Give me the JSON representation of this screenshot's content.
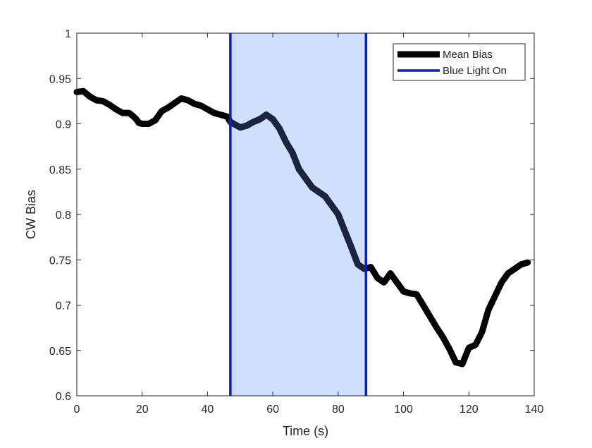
{
  "chart_data": {
    "type": "line",
    "title": "",
    "xlabel": "Time (s)",
    "ylabel": "CW Bias",
    "xlim": [
      0,
      140
    ],
    "ylim": [
      0.6,
      1
    ],
    "xticks": [
      0,
      20,
      40,
      60,
      80,
      100,
      120,
      140
    ],
    "xtick_labels": [
      "0",
      "20",
      "40",
      "60",
      "80",
      "100",
      "120",
      "140"
    ],
    "yticks": [
      0.6,
      0.65,
      0.7,
      0.75,
      0.8,
      0.85,
      0.9,
      0.95,
      1
    ],
    "ytick_labels": [
      "0.6",
      "0.65",
      "0.7",
      "0.75",
      "0.8",
      "0.85",
      "0.9",
      "0.95",
      "1"
    ],
    "grid": false,
    "legend_position": "top-right",
    "shaded_region": {
      "x_start": 47,
      "x_end": 88.5,
      "color": "#cfe0fb"
    },
    "series": [
      {
        "name": "Mean Bias",
        "color": "#000000",
        "x": [
          0,
          2,
          4,
          6,
          8,
          10,
          12,
          14,
          16,
          18,
          19,
          20,
          22,
          24,
          26,
          28,
          30,
          32,
          34,
          36,
          38,
          40,
          42,
          44,
          46,
          47,
          48,
          50,
          52,
          54,
          56,
          58,
          60,
          62,
          64,
          66,
          68,
          70,
          72,
          74,
          76,
          78,
          80,
          82,
          84,
          86,
          88,
          90,
          92,
          94,
          96,
          98,
          100,
          102,
          104,
          106,
          108,
          110,
          112,
          114,
          116,
          118,
          120,
          122,
          124,
          126,
          128,
          130,
          132,
          134,
          136,
          138
        ],
        "y": [
          0.935,
          0.936,
          0.93,
          0.926,
          0.925,
          0.921,
          0.916,
          0.912,
          0.912,
          0.906,
          0.901,
          0.9,
          0.9,
          0.904,
          0.914,
          0.918,
          0.923,
          0.928,
          0.926,
          0.922,
          0.92,
          0.916,
          0.912,
          0.91,
          0.908,
          0.902,
          0.9,
          0.896,
          0.898,
          0.902,
          0.905,
          0.91,
          0.905,
          0.895,
          0.88,
          0.868,
          0.85,
          0.84,
          0.83,
          0.825,
          0.82,
          0.81,
          0.8,
          0.782,
          0.764,
          0.745,
          0.74,
          0.742,
          0.73,
          0.725,
          0.735,
          0.725,
          0.715,
          0.713,
          0.712,
          0.7,
          0.688,
          0.676,
          0.665,
          0.652,
          0.637,
          0.635,
          0.653,
          0.656,
          0.67,
          0.695,
          0.71,
          0.725,
          0.735,
          0.74,
          0.745,
          0.747
        ]
      },
      {
        "name": "Blue Light On",
        "color": "#0a1fbf",
        "x": [
          47,
          88.5
        ],
        "y": [
          0.6,
          1
        ]
      }
    ]
  }
}
